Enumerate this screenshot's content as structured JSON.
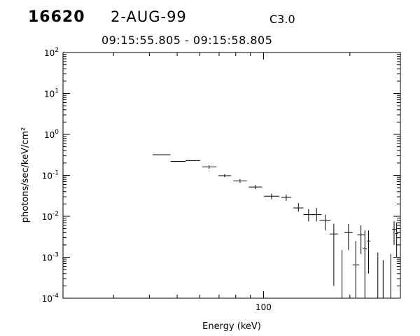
{
  "header": {
    "event_id": "16620",
    "date": "2-AUG-99",
    "goes_class": "C3.0",
    "time_range": "09:15:55.805 - 09:15:58.805"
  },
  "chart_data": {
    "type": "scatter",
    "title": "",
    "xlabel": "Energy (keV)",
    "ylabel": "photons/sec/keV/cm²",
    "x_scale": "log",
    "y_scale": "log",
    "xlim": [
      20,
      300
    ],
    "ylim": [
      0.0001,
      100
    ],
    "x_tick_labels": [
      "100"
    ],
    "y_tick_labels": [
      {
        "base": "10",
        "exp": "-4"
      },
      {
        "base": "10",
        "exp": "-3"
      },
      {
        "base": "10",
        "exp": "-2"
      },
      {
        "base": "10",
        "exp": "-1"
      },
      {
        "base": "10",
        "exp": "0"
      },
      {
        "base": "10",
        "exp": "1"
      },
      {
        "base": "10",
        "exp": "2"
      }
    ],
    "grid": false,
    "series": [
      {
        "points": [
          {
            "x": 44.1,
            "x_lo": 41.1,
            "x_hi": 47.4,
            "y": 0.32,
            "y_lo": 0.32,
            "y_hi": 0.32
          },
          {
            "x": 50.3,
            "x_lo": 47.4,
            "x_hi": 53.5,
            "y": 0.22,
            "y_lo": 0.22,
            "y_hi": 0.22
          },
          {
            "x": 56.9,
            "x_lo": 53.5,
            "x_hi": 60.1,
            "y": 0.23,
            "y_lo": 0.23,
            "y_hi": 0.23
          },
          {
            "x": 64.6,
            "x_lo": 61.1,
            "x_hi": 68.5,
            "y": 0.16,
            "y_lo": 0.145,
            "y_hi": 0.175
          },
          {
            "x": 73.2,
            "x_lo": 69.6,
            "x_hi": 77.1,
            "y": 0.098,
            "y_lo": 0.09,
            "y_hi": 0.107
          },
          {
            "x": 82.8,
            "x_lo": 78.4,
            "x_hi": 87.4,
            "y": 0.073,
            "y_lo": 0.066,
            "y_hi": 0.081
          },
          {
            "x": 93.5,
            "x_lo": 88.8,
            "x_hi": 98.8,
            "y": 0.052,
            "y_lo": 0.046,
            "y_hi": 0.058
          },
          {
            "x": 106.7,
            "x_lo": 100.4,
            "x_hi": 113.4,
            "y": 0.031,
            "y_lo": 0.026,
            "y_hi": 0.036
          },
          {
            "x": 120.0,
            "x_lo": 115.2,
            "x_hi": 125.1,
            "y": 0.029,
            "y_lo": 0.024,
            "y_hi": 0.034
          },
          {
            "x": 132.3,
            "x_lo": 127.1,
            "x_hi": 137.7,
            "y": 0.016,
            "y_lo": 0.013,
            "y_hi": 0.021
          },
          {
            "x": 143.6,
            "x_lo": 137.7,
            "x_hi": 149.6,
            "y": 0.011,
            "y_lo": 0.0075,
            "y_hi": 0.015
          },
          {
            "x": 153.1,
            "x_lo": 147.3,
            "x_hi": 159.3,
            "y": 0.011,
            "y_lo": 0.0075,
            "y_hi": 0.016
          },
          {
            "x": 164.0,
            "x_lo": 156.9,
            "x_hi": 171.4,
            "y": 0.008,
            "y_lo": 0.0045,
            "y_hi": 0.011
          },
          {
            "x": 175.8,
            "x_lo": 170.0,
            "x_hi": 181.8,
            "y": 0.0037,
            "y_lo": 0.0002,
            "y_hi": 0.0066
          },
          {
            "x": 187.8,
            "x_lo": 187.8,
            "x_hi": 187.8,
            "y": 0.0004,
            "y_lo": 0.0001,
            "y_hi": 0.0015
          },
          {
            "x": 197.8,
            "x_lo": 191.5,
            "x_hi": 204.4,
            "y": 0.004,
            "y_lo": 0.0015,
            "y_hi": 0.0065
          },
          {
            "x": 209.7,
            "x_lo": 204.4,
            "x_hi": 215.2,
            "y": 0.00065,
            "y_lo": 0.0001,
            "y_hi": 0.0025
          },
          {
            "x": 218.6,
            "x_lo": 212.5,
            "x_hi": 224.9,
            "y": 0.0035,
            "y_lo": 0.0012,
            "y_hi": 0.006
          },
          {
            "x": 225.6,
            "x_lo": 221.9,
            "x_hi": 229.4,
            "y": 0.0016,
            "y_lo": 0.0001,
            "y_hi": 0.0045
          },
          {
            "x": 232.4,
            "x_lo": 229.4,
            "x_hi": 235.5,
            "y": 0.0025,
            "y_lo": 0.0004,
            "y_hi": 0.0045
          },
          {
            "x": 250.3,
            "x_lo": 250.3,
            "x_hi": 250.3,
            "y": 0.0004,
            "y_lo": 0.0001,
            "y_hi": 0.0013
          },
          {
            "x": 261.2,
            "x_lo": 261.2,
            "x_hi": 261.2,
            "y": 0.0004,
            "y_lo": 0.0001,
            "y_hi": 0.00085
          },
          {
            "x": 277.7,
            "x_lo": 277.7,
            "x_hi": 277.7,
            "y": 0.0004,
            "y_lo": 0.0001,
            "y_hi": 0.0012
          },
          {
            "x": 285.2,
            "x_lo": 280.9,
            "x_hi": 289.6,
            "y": 0.0048,
            "y_lo": 0.002,
            "y_hi": 0.0075
          },
          {
            "x": 291.1,
            "x_lo": 287.6,
            "x_hi": 294.6,
            "y": 0.0038,
            "y_lo": 0.001,
            "y_hi": 0.007
          }
        ]
      }
    ]
  }
}
